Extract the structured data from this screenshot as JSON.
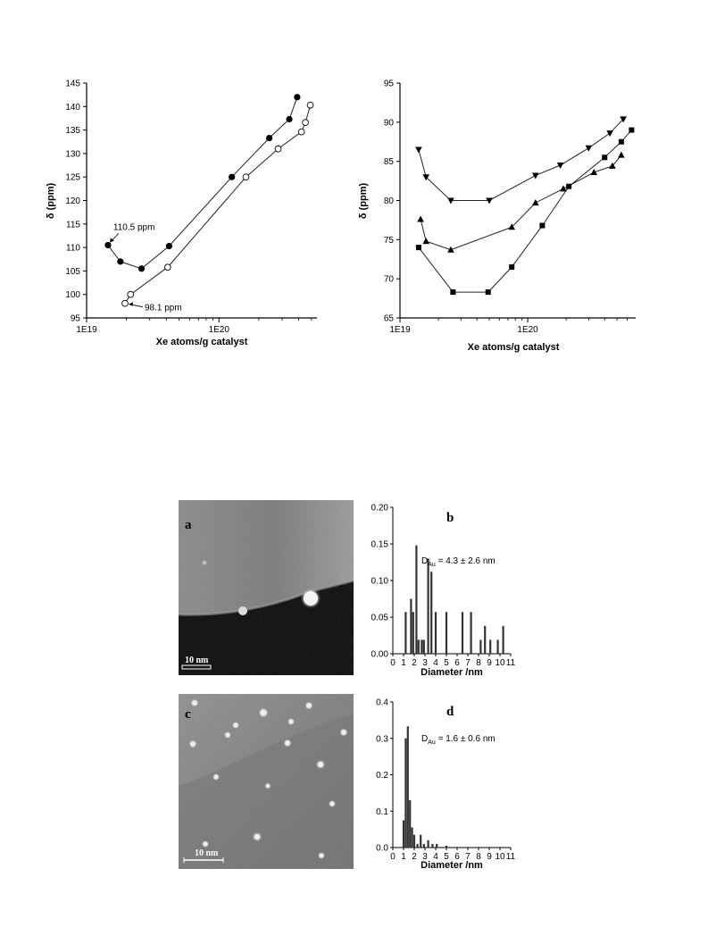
{
  "chart_data": [
    {
      "id": "top-left",
      "type": "line",
      "xlabel": "Xe atoms/g catalyst",
      "ylabel": "δ (ppm)",
      "xscale": "log",
      "xlim": [
        1e+19,
        5.5e+20
      ],
      "ylim": [
        95,
        145
      ],
      "yticks": [
        95,
        100,
        105,
        110,
        115,
        120,
        125,
        130,
        135,
        140,
        145
      ],
      "xticks": [
        {
          "value": 1e+19,
          "label": "1E19"
        },
        {
          "value": 1e+20,
          "label": "1E20"
        }
      ],
      "series": [
        {
          "marker": "filled-circle",
          "x": [
            1.45e+19,
            1.8e+19,
            2.6e+19,
            4.2e+19,
            1.25e+20,
            2.4e+20,
            3.4e+20,
            3.9e+20
          ],
          "y": [
            110.5,
            107,
            105.5,
            110.3,
            125,
            133.3,
            137.3,
            142
          ]
        },
        {
          "marker": "open-circle",
          "x": [
            1.95e+19,
            2.15e+19,
            4.1e+19,
            1.6e+20,
            2.8e+20,
            4.2e+20,
            4.5e+20,
            4.9e+20
          ],
          "y": [
            98.1,
            100,
            105.8,
            125,
            131,
            134.6,
            136.6,
            140.3
          ]
        }
      ],
      "annotations": [
        {
          "text": "110.5 ppm",
          "x": 1.45e+19,
          "y": 110.5
        },
        {
          "text": "98.1 ppm",
          "x": 1.95e+19,
          "y": 98.1
        }
      ]
    },
    {
      "id": "top-right",
      "type": "line",
      "xlabel": "Xe atoms/g catalyst",
      "ylabel": "δ (ppm)",
      "xscale": "log",
      "xlim": [
        1e+19,
        7e+20
      ],
      "ylim": [
        65,
        95
      ],
      "yticks": [
        65,
        70,
        75,
        80,
        85,
        90,
        95
      ],
      "xticks": [
        {
          "value": 1e+19,
          "label": "1E19"
        },
        {
          "value": 1e+20,
          "label": "1E20"
        }
      ],
      "series": [
        {
          "marker": "down-triangle",
          "x": [
            1.4e+19,
            1.6e+19,
            2.5e+19,
            5e+19,
            1.15e+20,
            1.8e+20,
            3e+20,
            4.4e+20,
            5.6e+20
          ],
          "y": [
            86.5,
            83,
            80,
            80,
            83.2,
            84.5,
            86.7,
            88.6,
            90.4
          ]
        },
        {
          "marker": "up-triangle",
          "x": [
            1.45e+19,
            1.6e+19,
            2.5e+19,
            7.5e+19,
            1.15e+20,
            1.9e+20,
            3.3e+20,
            4.6e+20,
            5.4e+20
          ],
          "y": [
            77.6,
            74.8,
            73.7,
            76.6,
            79.7,
            81.5,
            83.6,
            84.4,
            85.8
          ]
        },
        {
          "marker": "square",
          "x": [
            1.4e+19,
            2.6e+19,
            4.9e+19,
            7.5e+19,
            1.3e+20,
            2.1e+20,
            4e+20,
            5.4e+20,
            6.5e+20
          ],
          "y": [
            74,
            68.3,
            68.3,
            71.5,
            76.8,
            81.8,
            85.5,
            87.5,
            89
          ]
        }
      ]
    },
    {
      "id": "hist-b",
      "type": "bar",
      "panel_label": "b",
      "xlabel": "Diameter /nm",
      "xlim": [
        0,
        11
      ],
      "ylim": [
        0,
        0.2
      ],
      "xticks": [
        0,
        1,
        2,
        3,
        4,
        5,
        6,
        7,
        8,
        9,
        10,
        11
      ],
      "yticks": [
        "0.00",
        "0.05",
        "0.10",
        "0.15",
        "0.20"
      ],
      "annotation": {
        "main": "D",
        "sub": "Au",
        "rest": " = 4.3 ± 2.6 nm"
      },
      "x": [
        1.2,
        1.7,
        1.9,
        2.2,
        2.4,
        2.7,
        2.9,
        3.3,
        3.6,
        4.0,
        5.0,
        6.5,
        7.3,
        8.2,
        8.6,
        9.1,
        9.8,
        10.3
      ],
      "values": [
        0.057,
        0.075,
        0.057,
        0.148,
        0.019,
        0.019,
        0.019,
        0.13,
        0.112,
        0.057,
        0.057,
        0.057,
        0.057,
        0.019,
        0.038,
        0.019,
        0.019,
        0.038
      ]
    },
    {
      "id": "hist-d",
      "type": "bar",
      "panel_label": "d",
      "xlabel": "Diameter /nm",
      "xlim": [
        0,
        11
      ],
      "ylim": [
        0,
        0.4
      ],
      "xticks": [
        0,
        1,
        2,
        3,
        4,
        5,
        6,
        7,
        8,
        9,
        10,
        11
      ],
      "yticks": [
        "0.0",
        "0.1",
        "0.2",
        "0.3",
        "0.4"
      ],
      "annotation": {
        "main": "D",
        "sub": "Au",
        "rest": " = 1.6 ± 0.6 nm"
      },
      "x": [
        1.0,
        1.2,
        1.4,
        1.6,
        1.8,
        2.0,
        2.3,
        2.6,
        2.9,
        3.3,
        3.7,
        4.1,
        5.0
      ],
      "values": [
        0.075,
        0.3,
        0.333,
        0.13,
        0.055,
        0.035,
        0.01,
        0.035,
        0.01,
        0.02,
        0.01,
        0.01,
        0.005
      ]
    }
  ],
  "micrographs": [
    {
      "id": "micrograph-a",
      "panel_label": "a",
      "scale_label": "10 nm"
    },
    {
      "id": "micrograph-c",
      "panel_label": "c",
      "scale_label": "10 nm"
    }
  ]
}
